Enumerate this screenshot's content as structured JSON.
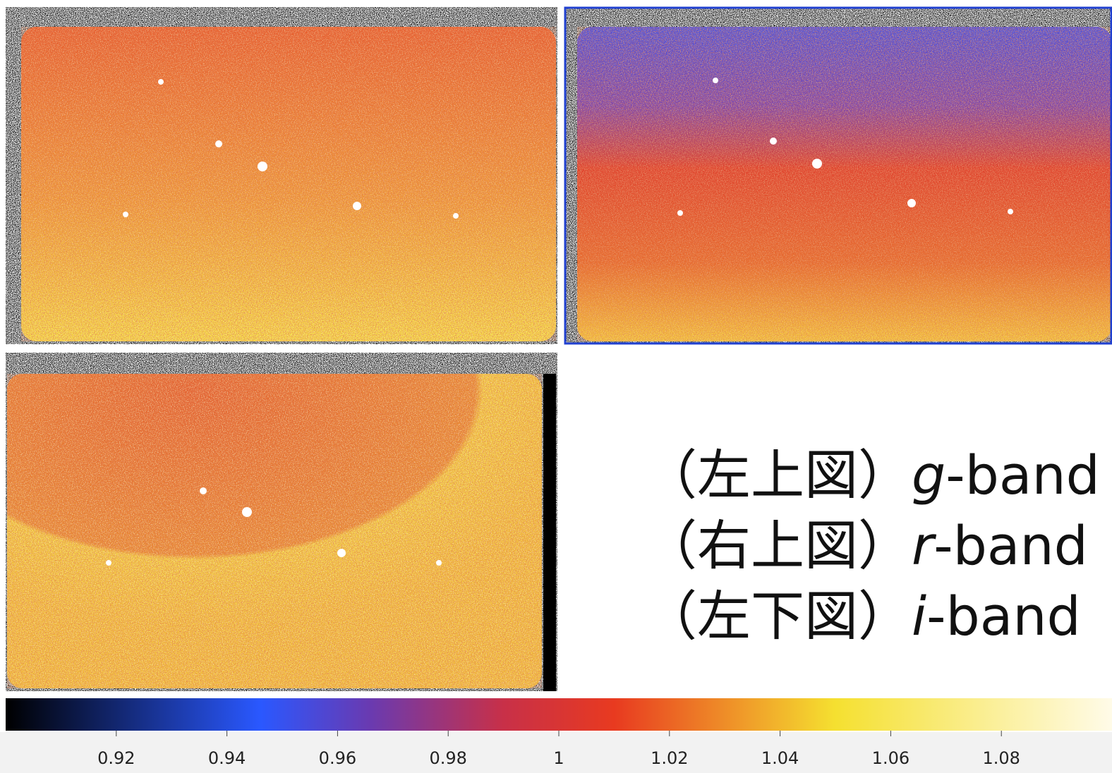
{
  "labels": [
    {
      "prefix": "（左上図）",
      "band": "g",
      "suffix": "-band"
    },
    {
      "prefix": "（右上図）",
      "band": "r",
      "suffix": "-band"
    },
    {
      "prefix": "（左下図）",
      "band": "i",
      "suffix": "-band"
    }
  ],
  "colorbar": {
    "lim": [
      0.9,
      1.1
    ],
    "ticks": [
      0.92,
      0.94,
      0.96,
      0.98,
      1,
      1.02,
      1.04,
      1.06,
      1.08
    ]
  }
}
